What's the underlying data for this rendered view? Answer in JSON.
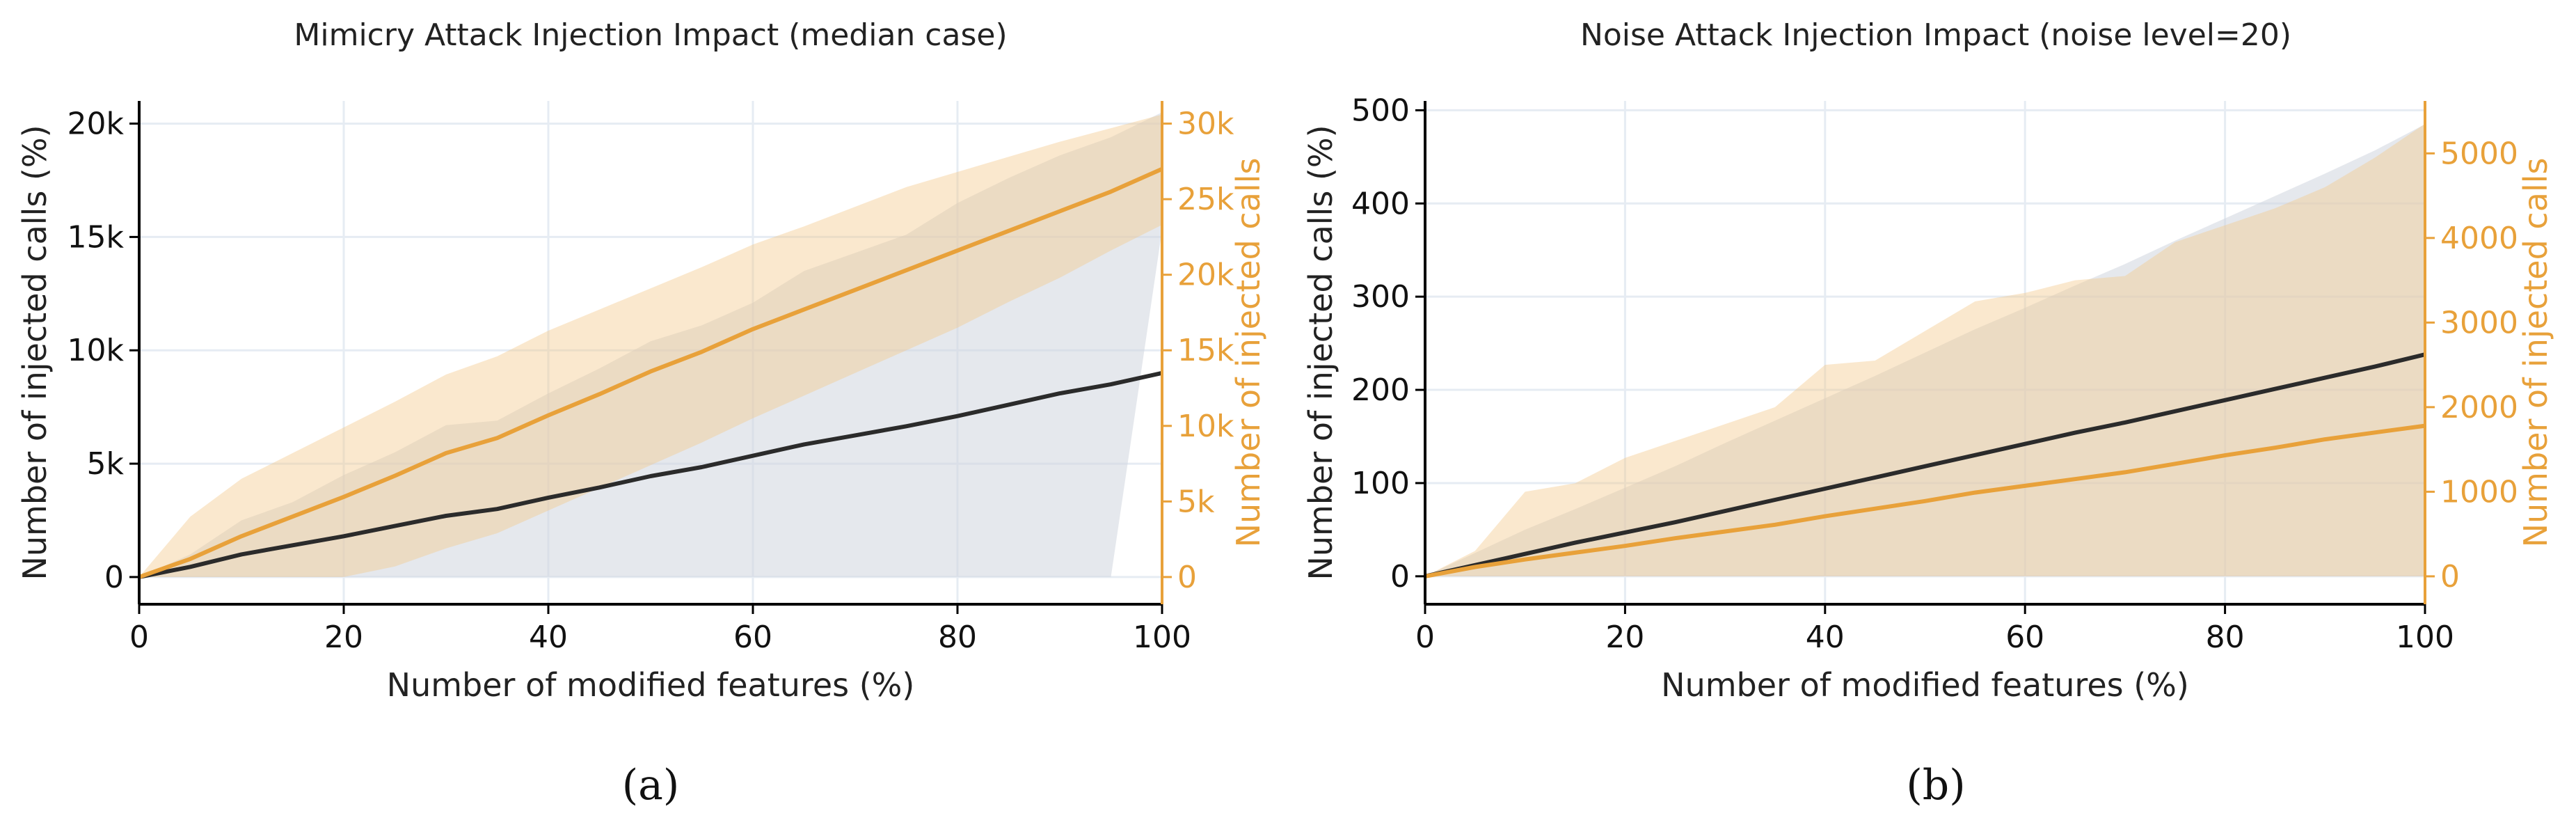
{
  "colors": {
    "dark": "#2b2b2b",
    "orange": "#e8a13a",
    "grid": "#e6ecf3",
    "band_dark": "#cfd5de",
    "band_orange": "#f3c98a",
    "axis": "#000000"
  },
  "chart_data": [
    {
      "type": "line",
      "caption": "(a)",
      "title": "Mimicry Attack Injection Impact (median case)",
      "xlabel": "Number of modified features (%)",
      "ylabel_left": "Number of injected calls (%)",
      "ylabel_right": "Number of injected calls",
      "xlim": [
        0,
        100
      ],
      "ylim_left": [
        -1200,
        21000
      ],
      "ylim_right": [
        -1800,
        31500
      ],
      "xticks": [
        0,
        20,
        40,
        60,
        80,
        100
      ],
      "xtick_labels": [
        "0",
        "20",
        "40",
        "60",
        "80",
        "100"
      ],
      "yticks_left": [
        0,
        5000,
        10000,
        15000,
        20000
      ],
      "ytick_labels_left": [
        "0",
        "5k",
        "10k",
        "15k",
        "20k"
      ],
      "yticks_right": [
        0,
        5000,
        10000,
        15000,
        20000,
        25000,
        30000
      ],
      "ytick_labels_right": [
        "0",
        "5k",
        "10k",
        "15k",
        "20k",
        "25k",
        "30k"
      ],
      "x": [
        0,
        5,
        10,
        15,
        20,
        25,
        30,
        35,
        40,
        45,
        50,
        55,
        60,
        65,
        70,
        75,
        80,
        85,
        90,
        95,
        100
      ],
      "series": [
        {
          "name": "Number of injected calls (%)",
          "axis": "left",
          "color": "dark",
          "values": [
            0,
            450,
            1000,
            1400,
            1800,
            2250,
            2700,
            3000,
            3500,
            3950,
            4450,
            4850,
            5350,
            5850,
            6250,
            6650,
            7100,
            7600,
            8100,
            8500,
            9000
          ],
          "band_upper": [
            0,
            1000,
            2500,
            3300,
            4500,
            5500,
            6700,
            6900,
            8100,
            9200,
            10400,
            11100,
            12100,
            13500,
            14300,
            15100,
            16500,
            17600,
            18600,
            19400,
            20500
          ],
          "band_lower": [
            0,
            0,
            0,
            0,
            0,
            0,
            0,
            0,
            0,
            0,
            0,
            0,
            0,
            0,
            0,
            0,
            0,
            0,
            0,
            0,
            15300
          ]
        },
        {
          "name": "Number of injected calls",
          "axis": "right",
          "color": "orange",
          "values": [
            0,
            1200,
            2700,
            4000,
            5300,
            6700,
            8200,
            9200,
            10700,
            12100,
            13600,
            14900,
            16400,
            17700,
            19000,
            20300,
            21600,
            22900,
            24200,
            25500,
            27000
          ],
          "band_upper": [
            0,
            4000,
            6500,
            8200,
            9900,
            11600,
            13400,
            14600,
            16300,
            17700,
            19100,
            20500,
            22000,
            23200,
            24500,
            25800,
            26800,
            27800,
            28800,
            29700,
            30600
          ],
          "band_lower": [
            0,
            0,
            0,
            0,
            0,
            700,
            1900,
            2900,
            4400,
            5900,
            7400,
            8900,
            10500,
            12000,
            13500,
            15000,
            16500,
            18200,
            19800,
            21600,
            23300
          ]
        }
      ]
    },
    {
      "type": "line",
      "caption": "(b)",
      "title": "Noise Attack Injection Impact (noise level=20)",
      "xlabel": "Number of modified features (%)",
      "ylabel_left": "Number of injected calls (%)",
      "ylabel_right": "Number of injected calls",
      "xlim": [
        0,
        100
      ],
      "ylim_left": [
        -30,
        510
      ],
      "ylim_right": [
        -330,
        5620
      ],
      "xticks": [
        0,
        20,
        40,
        60,
        80,
        100
      ],
      "xtick_labels": [
        "0",
        "20",
        "40",
        "60",
        "80",
        "100"
      ],
      "yticks_left": [
        0,
        100,
        200,
        300,
        400,
        500
      ],
      "ytick_labels_left": [
        "0",
        "100",
        "200",
        "300",
        "400",
        "500"
      ],
      "yticks_right": [
        0,
        1000,
        2000,
        3000,
        4000,
        5000
      ],
      "ytick_labels_right": [
        "0",
        "1000",
        "2000",
        "3000",
        "4000",
        "5000"
      ],
      "x": [
        0,
        5,
        10,
        15,
        20,
        25,
        30,
        35,
        40,
        45,
        50,
        55,
        60,
        65,
        70,
        75,
        80,
        85,
        90,
        95,
        100
      ],
      "series": [
        {
          "name": "Number of injected calls (%)",
          "axis": "left",
          "color": "dark",
          "values": [
            0,
            12,
            24,
            36,
            47,
            58,
            70,
            82,
            94,
            106,
            118,
            130,
            142,
            154,
            165,
            177,
            189,
            201,
            213,
            225,
            238
          ],
          "band_upper": [
            0,
            25,
            50,
            72,
            95,
            118,
            143,
            167,
            191,
            215,
            240,
            265,
            288,
            312,
            335,
            360,
            384,
            408,
            432,
            457,
            485
          ],
          "band_lower": [
            0,
            0,
            0,
            0,
            0,
            0,
            0,
            0,
            0,
            0,
            0,
            0,
            0,
            0,
            0,
            0,
            0,
            0,
            0,
            0,
            0
          ]
        },
        {
          "name": "Number of injected calls",
          "axis": "right",
          "color": "orange",
          "values": [
            0,
            110,
            200,
            280,
            360,
            450,
            530,
            610,
            710,
            800,
            890,
            990,
            1070,
            1150,
            1230,
            1330,
            1430,
            1520,
            1620,
            1700,
            1780
          ],
          "band_upper": [
            0,
            300,
            1000,
            1100,
            1400,
            1600,
            1800,
            2000,
            2500,
            2550,
            2900,
            3250,
            3350,
            3500,
            3550,
            3950,
            4150,
            4350,
            4600,
            4950,
            5350
          ],
          "band_lower": [
            0,
            0,
            0,
            0,
            0,
            0,
            0,
            0,
            0,
            0,
            0,
            0,
            0,
            0,
            0,
            0,
            0,
            0,
            0,
            0,
            0
          ]
        }
      ]
    }
  ]
}
